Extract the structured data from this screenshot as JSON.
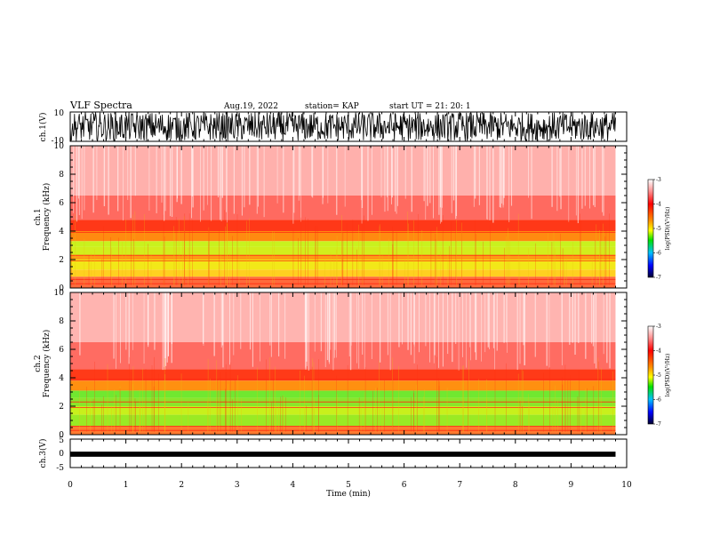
{
  "header": {
    "title": "VLF Spectra",
    "date": "Aug.19, 2022",
    "station": "station= KAP",
    "start": "start  UT  =   21: 20: 1"
  },
  "chart_data": [
    {
      "type": "line",
      "name": "ch1-waveform",
      "ylabel": "ch.1(V)",
      "ylim": [
        -10,
        10
      ],
      "yticks": [
        "10",
        "-10"
      ],
      "xlim": [
        0,
        10
      ]
    },
    {
      "type": "heatmap",
      "name": "ch1-spectrogram",
      "ylabel": "ch.1\nFrequency  (kHz)",
      "ylabel_ch": "ch.1",
      "ylabel_freq": "Frequency  (kHz)",
      "ylim": [
        0,
        10
      ],
      "yticks": [
        "0",
        "2",
        "4",
        "6",
        "8",
        "10"
      ],
      "xlim": [
        0,
        9.8
      ],
      "colorbar": {
        "label": "log(PSD)(V²/Hz)",
        "range": [
          -7,
          -3
        ],
        "ticks": [
          "-3",
          "-4",
          "-5",
          "-6",
          "-7"
        ]
      },
      "bands": [
        {
          "from_khz": 0,
          "to_khz": 0.8,
          "color": "#ff6a3c"
        },
        {
          "from_khz": 0.8,
          "to_khz": 1.3,
          "color": "#ffd020"
        },
        {
          "from_khz": 1.3,
          "to_khz": 2.0,
          "color": "#f2e818"
        },
        {
          "from_khz": 2.0,
          "to_khz": 2.3,
          "color": "#ff9a14"
        },
        {
          "from_khz": 2.3,
          "to_khz": 2.9,
          "color": "#d2ee1c"
        },
        {
          "from_khz": 2.9,
          "to_khz": 3.3,
          "color": "#c8f21e"
        },
        {
          "from_khz": 3.3,
          "to_khz": 4.0,
          "color": "#ff8a10"
        },
        {
          "from_khz": 4.0,
          "to_khz": 4.8,
          "color": "#ff3818"
        },
        {
          "from_khz": 4.8,
          "to_khz": 6.5,
          "color": "#ff6a60"
        },
        {
          "from_khz": 6.5,
          "to_khz": 10,
          "color": "#ffb0ac"
        }
      ]
    },
    {
      "type": "heatmap",
      "name": "ch2-spectrogram",
      "ylabel": "ch.2\nFrequency  (kHz)",
      "ylabel_ch": "ch.2",
      "ylabel_freq": "Frequency  (kHz)",
      "ylim": [
        0,
        10
      ],
      "yticks": [
        "0",
        "2",
        "4",
        "6",
        "8",
        "10"
      ],
      "xlim": [
        0,
        9.8
      ],
      "colorbar": {
        "label": "log(PSD)(V²/Hz)",
        "range": [
          -7,
          -3
        ],
        "ticks": [
          "-3",
          "-4",
          "-5",
          "-6",
          "-7"
        ]
      },
      "bands": [
        {
          "from_khz": 0,
          "to_khz": 0.6,
          "color": "#ff7a30"
        },
        {
          "from_khz": 0.6,
          "to_khz": 1.4,
          "color": "#9aea24"
        },
        {
          "from_khz": 1.4,
          "to_khz": 2.0,
          "color": "#c8f01c"
        },
        {
          "from_khz": 2.0,
          "to_khz": 2.6,
          "color": "#8ae62a"
        },
        {
          "from_khz": 2.6,
          "to_khz": 3.1,
          "color": "#70e830"
        },
        {
          "from_khz": 3.1,
          "to_khz": 3.8,
          "color": "#ff9010"
        },
        {
          "from_khz": 3.8,
          "to_khz": 4.6,
          "color": "#ff3a18"
        },
        {
          "from_khz": 4.6,
          "to_khz": 6.5,
          "color": "#ff6c62"
        },
        {
          "from_khz": 6.5,
          "to_khz": 10,
          "color": "#ffb4b0"
        }
      ]
    },
    {
      "type": "line",
      "name": "ch3-waveform",
      "ylabel": "ch.3(V)",
      "ylim": [
        -5,
        5
      ],
      "yticks": [
        "5",
        "0",
        "-5"
      ],
      "xlim": [
        0,
        10
      ],
      "xlabel": "Time  (min)",
      "xticks": [
        "0",
        "1",
        "2",
        "3",
        "4",
        "5",
        "6",
        "7",
        "8",
        "9",
        "10"
      ]
    }
  ]
}
